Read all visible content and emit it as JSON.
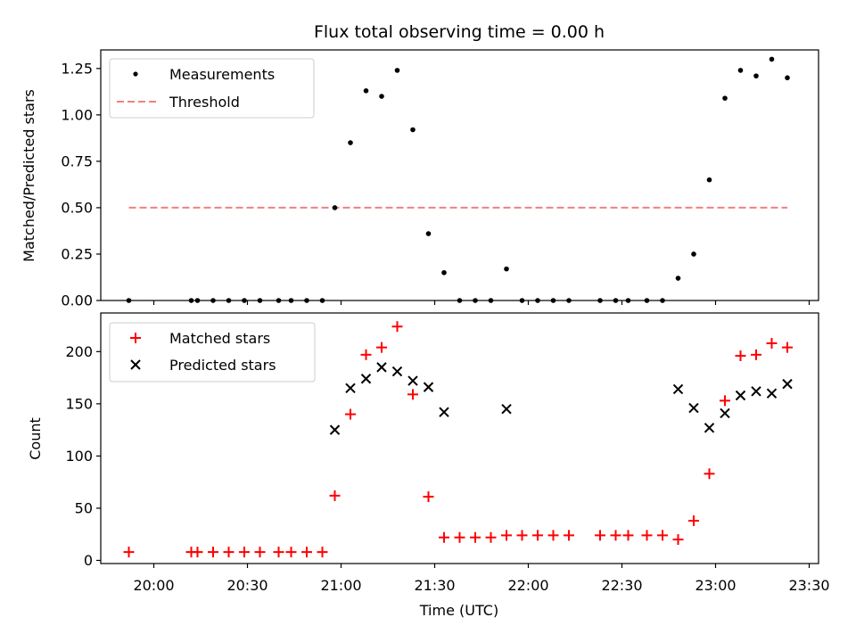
{
  "title": "Flux total observing time = 0.00 h",
  "colors": {
    "measurements": "#000000",
    "threshold": "#f08080",
    "matched": "#ff0000",
    "predicted": "#000000"
  },
  "chart_data": [
    {
      "type": "scatter",
      "title": "Flux total observing time = 0.00 h",
      "xlabel": "",
      "ylabel": "Matched/Predicted stars",
      "ylim": [
        0,
        1.35
      ],
      "yticks": [
        0.0,
        0.25,
        0.5,
        0.75,
        1.0,
        1.25
      ],
      "ytick_labels": [
        "0.00",
        "0.25",
        "0.50",
        "0.75",
        "1.00",
        "1.25"
      ],
      "xlim": [
        "19:43",
        "23:33"
      ],
      "grid": false,
      "legend": "upper left",
      "series": [
        {
          "name": "Measurements",
          "marker": "dot",
          "x": [
            "19:52",
            "20:12",
            "20:14",
            "20:19",
            "20:24",
            "20:29",
            "20:34",
            "20:40",
            "20:44",
            "20:49",
            "20:54",
            "20:58",
            "21:03",
            "21:08",
            "21:13",
            "21:18",
            "21:23",
            "21:28",
            "21:33",
            "21:38",
            "21:43",
            "21:48",
            "21:53",
            "21:58",
            "22:03",
            "22:08",
            "22:13",
            "22:23",
            "22:28",
            "22:32",
            "22:38",
            "22:43",
            "22:48",
            "22:53",
            "22:58",
            "23:03",
            "23:08",
            "23:13",
            "23:18",
            "23:23"
          ],
          "y": [
            0.0,
            0.0,
            0.0,
            0.0,
            0.0,
            0.0,
            0.0,
            0.0,
            0.0,
            0.0,
            0.0,
            0.5,
            0.85,
            1.13,
            1.1,
            1.24,
            0.92,
            0.36,
            0.15,
            0.0,
            0.0,
            0.0,
            0.17,
            0.0,
            0.0,
            0.0,
            0.0,
            0.0,
            0.0,
            0.0,
            0.0,
            0.0,
            0.12,
            0.25,
            0.65,
            1.09,
            1.24,
            1.21,
            1.3,
            1.2
          ]
        },
        {
          "name": "Threshold",
          "style": "dashed",
          "x": [
            "19:52",
            "23:23"
          ],
          "y": [
            0.5,
            0.5
          ]
        }
      ]
    },
    {
      "type": "scatter",
      "xlabel": "Time (UTC)",
      "ylabel": "Count",
      "ylim": [
        -3,
        237
      ],
      "yticks": [
        0,
        50,
        100,
        150,
        200
      ],
      "ytick_labels": [
        "0",
        "50",
        "100",
        "150",
        "200"
      ],
      "xlim": [
        "19:43",
        "23:33"
      ],
      "xticks": [
        "20:00",
        "20:30",
        "21:00",
        "21:30",
        "22:00",
        "22:30",
        "23:00",
        "23:30"
      ],
      "xtick_labels": [
        "20:00",
        "20:30",
        "21:00",
        "21:30",
        "22:00",
        "22:30",
        "23:00",
        "23:30"
      ],
      "grid": false,
      "legend": "upper left",
      "series": [
        {
          "name": "Matched stars",
          "marker": "plus",
          "x": [
            "19:52",
            "20:12",
            "20:14",
            "20:19",
            "20:24",
            "20:29",
            "20:34",
            "20:40",
            "20:44",
            "20:49",
            "20:54",
            "20:58",
            "21:03",
            "21:08",
            "21:13",
            "21:18",
            "21:23",
            "21:28",
            "21:33",
            "21:38",
            "21:43",
            "21:48",
            "21:53",
            "21:58",
            "22:03",
            "22:08",
            "22:13",
            "22:23",
            "22:28",
            "22:32",
            "22:38",
            "22:43",
            "22:48",
            "22:53",
            "22:58",
            "23:03",
            "23:08",
            "23:13",
            "23:18",
            "23:23"
          ],
          "y": [
            8,
            8,
            8,
            8,
            8,
            8,
            8,
            8,
            8,
            8,
            8,
            62,
            140,
            197,
            204,
            224,
            159,
            61,
            22,
            22,
            22,
            22,
            24,
            24,
            24,
            24,
            24,
            24,
            24,
            24,
            24,
            24,
            20,
            38,
            83,
            153,
            196,
            197,
            208,
            204
          ]
        },
        {
          "name": "Predicted stars",
          "marker": "x",
          "x": [
            "20:58",
            "21:03",
            "21:08",
            "21:13",
            "21:18",
            "21:23",
            "21:28",
            "21:33",
            "21:53",
            "22:48",
            "22:53",
            "22:58",
            "23:03",
            "23:08",
            "23:13",
            "23:18",
            "23:23"
          ],
          "y": [
            125,
            165,
            174,
            185,
            181,
            172,
            166,
            142,
            145,
            164,
            146,
            127,
            141,
            158,
            162,
            160,
            169
          ]
        }
      ]
    }
  ]
}
